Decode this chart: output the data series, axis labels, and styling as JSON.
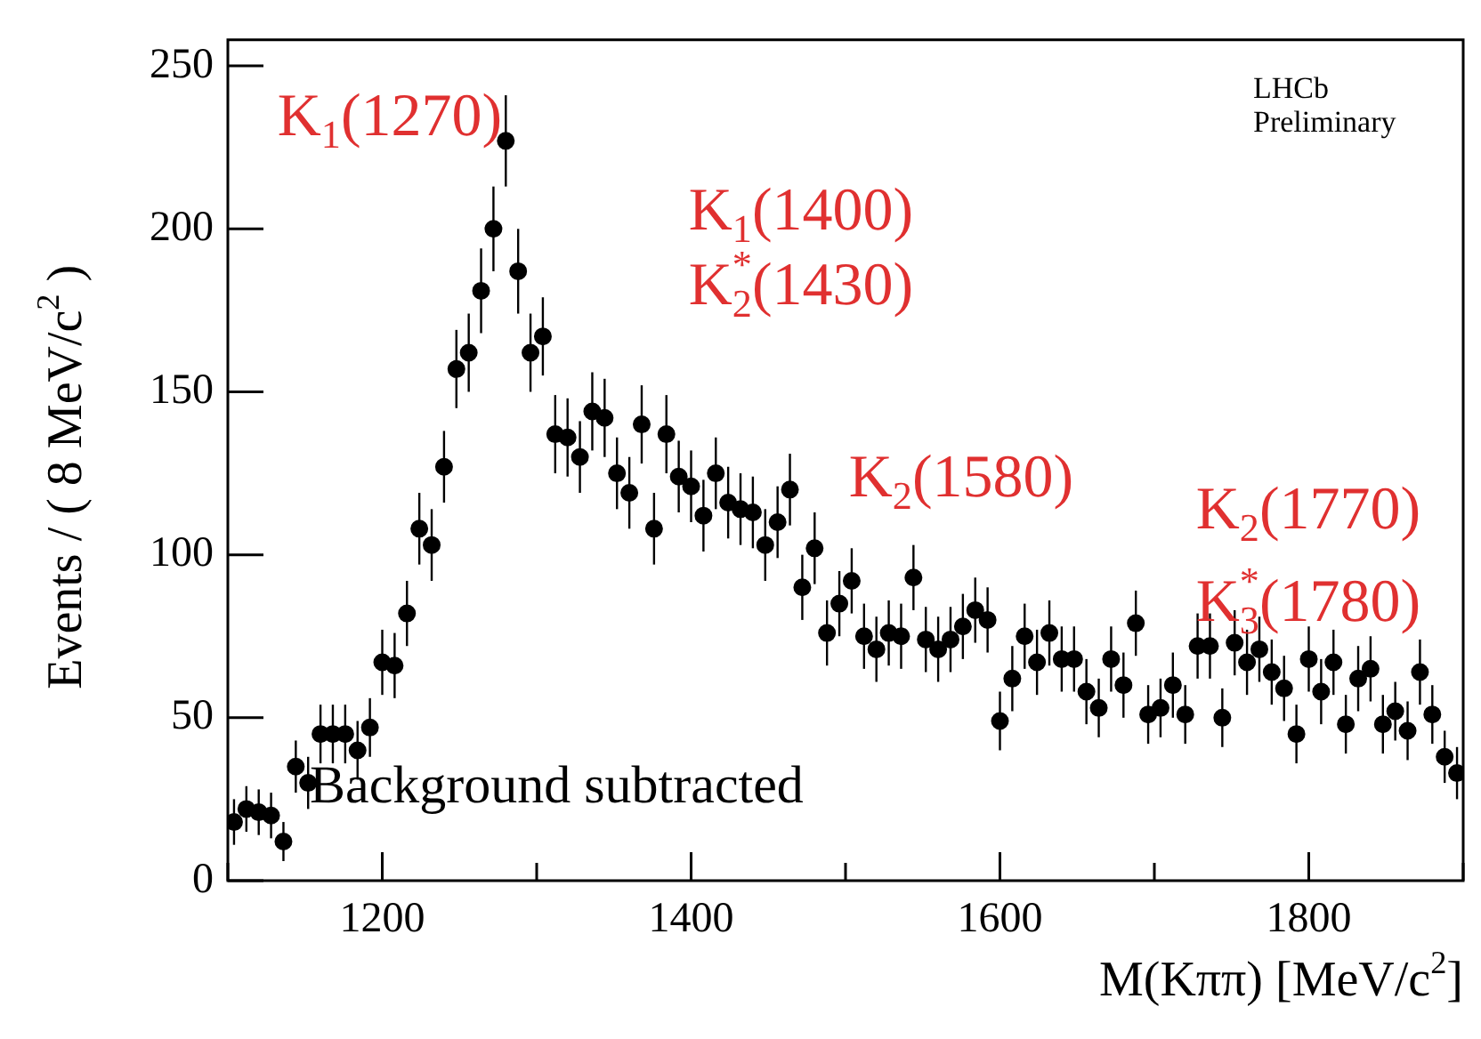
{
  "chart_data": {
    "type": "scatter",
    "xlabel": "M(Kππ) [MeV/c$^{2}$]",
    "ylabel": "Events / ( 8 MeV/c$^{2}$ )",
    "x": [
      1104,
      1112,
      1120,
      1128,
      1136,
      1144,
      1152,
      1160,
      1168,
      1176,
      1184,
      1192,
      1200,
      1208,
      1216,
      1224,
      1232,
      1240,
      1248,
      1256,
      1264,
      1272,
      1280,
      1288,
      1296,
      1304,
      1312,
      1320,
      1328,
      1336,
      1344,
      1352,
      1360,
      1368,
      1376,
      1384,
      1392,
      1400,
      1408,
      1416,
      1424,
      1432,
      1440,
      1448,
      1456,
      1464,
      1472,
      1480,
      1488,
      1496,
      1504,
      1512,
      1520,
      1528,
      1536,
      1544,
      1552,
      1560,
      1568,
      1576,
      1584,
      1592,
      1600,
      1608,
      1616,
      1624,
      1632,
      1640,
      1648,
      1656,
      1664,
      1672,
      1680,
      1688,
      1696,
      1704,
      1712,
      1720,
      1728,
      1736,
      1744,
      1752,
      1760,
      1768,
      1776,
      1784,
      1792,
      1800,
      1808,
      1816,
      1824,
      1832,
      1840,
      1848,
      1856,
      1864,
      1872,
      1880,
      1888,
      1896
    ],
    "series": [
      {
        "color": "#000000",
        "values": [
          18,
          22,
          21,
          20,
          12,
          35,
          30,
          45,
          45,
          45,
          40,
          47,
          67,
          66,
          82,
          108,
          103,
          127,
          157,
          162,
          181,
          200,
          227,
          187,
          162,
          167,
          137,
          136,
          130,
          144,
          142,
          125,
          119,
          140,
          108,
          137,
          124,
          121,
          112,
          125,
          116,
          114,
          113,
          103,
          110,
          120,
          90,
          102,
          76,
          85,
          92,
          75,
          71,
          76,
          75,
          93,
          74,
          71,
          74,
          78,
          83,
          80,
          49,
          62,
          75,
          67,
          76,
          68,
          68,
          58,
          53,
          68,
          60,
          79,
          51,
          53,
          60,
          51,
          72,
          72,
          50,
          73,
          67,
          71,
          64,
          59,
          45,
          68,
          58,
          67,
          48,
          62,
          65,
          48,
          52,
          46,
          64,
          51,
          38,
          33
        ],
        "errors": [
          7,
          7,
          7,
          7,
          6,
          8,
          8,
          9,
          9,
          9,
          9,
          9,
          10,
          10,
          10,
          11,
          11,
          11,
          12,
          12,
          13,
          13,
          14,
          13,
          12,
          12,
          12,
          12,
          11,
          12,
          12,
          11,
          11,
          12,
          11,
          12,
          11,
          11,
          11,
          11,
          11,
          11,
          11,
          11,
          11,
          11,
          10,
          11,
          10,
          10,
          10,
          10,
          10,
          10,
          10,
          10,
          10,
          10,
          10,
          10,
          10,
          10,
          9,
          10,
          10,
          10,
          10,
          10,
          10,
          10,
          9,
          10,
          10,
          10,
          9,
          9,
          10,
          9,
          10,
          10,
          9,
          10,
          10,
          10,
          10,
          10,
          9,
          10,
          10,
          10,
          9,
          10,
          10,
          9,
          9,
          9,
          10,
          9,
          8,
          8
        ]
      }
    ],
    "xlim": [
      1100,
      1900
    ],
    "ylim": [
      0,
      258
    ],
    "xticks": [
      {
        "value": 1100,
        "label": null
      },
      1200,
      {
        "value": 1300,
        "label": null
      },
      1400,
      {
        "value": 1500,
        "label": null
      },
      1600,
      {
        "value": 1700,
        "label": null
      },
      1800,
      {
        "value": 1900,
        "label": null
      }
    ],
    "yticks": [
      0,
      50,
      100,
      150,
      200,
      250
    ],
    "marker": "circle",
    "grid": false,
    "legend": false,
    "annotations": [
      "LHCb Preliminary",
      "Background subtracted",
      "K$_{1}$(1270)",
      "K$_{1}$(1400)",
      "K$_{2}$$^{*}$(1430)",
      "K$_{2}$(1580)",
      "K$_{2}$(1770)",
      "K$_{3}$$^{*}$(1780)"
    ]
  }
}
